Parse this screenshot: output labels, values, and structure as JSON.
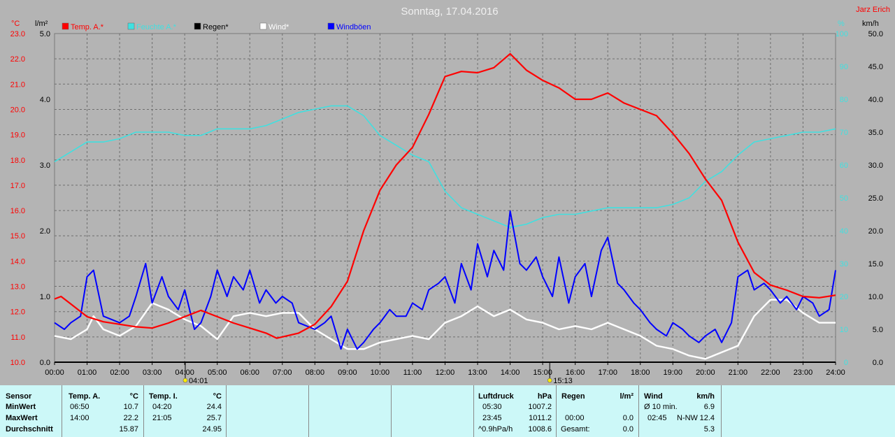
{
  "chart_data": {
    "type": "line",
    "title": "Sonntag, 17.04.2016",
    "credit": "Jarz Erich",
    "left_axis_unit": "°C",
    "left2_axis_unit": "l/m²",
    "right_axis_unit": "%",
    "right2_axis_unit": "km/h",
    "temp_ylim": [
      10,
      23
    ],
    "temp_ticks": [
      "10.0",
      "11.0",
      "12.0",
      "13.0",
      "14.0",
      "15.0",
      "16.0",
      "17.0",
      "18.0",
      "19.0",
      "20.0",
      "21.0",
      "22.0",
      "23.0"
    ],
    "rain_ylim": [
      0,
      5
    ],
    "rain_ticks": [
      "0.0",
      "1.0",
      "2.0",
      "3.0",
      "4.0",
      "5.0"
    ],
    "hum_ylim": [
      0,
      100
    ],
    "hum_ticks": [
      "0",
      "10",
      "20",
      "30",
      "40",
      "50",
      "60",
      "70",
      "80",
      "90",
      "100"
    ],
    "wind_ylim": [
      0,
      50
    ],
    "wind_ticks": [
      "0.0",
      "5.0",
      "10.0",
      "15.0",
      "20.0",
      "25.0",
      "30.0",
      "35.0",
      "40.0",
      "45.0",
      "50.0"
    ],
    "x_ticks": [
      "00:00",
      "01:00",
      "02:00",
      "03:00",
      "04:00",
      "05:00",
      "06:00",
      "07:00",
      "08:00",
      "09:00",
      "10:00",
      "11:00",
      "12:00",
      "13:00",
      "14:00",
      "15:00",
      "16:00",
      "17:00",
      "18:00",
      "19:00",
      "20:00",
      "21:00",
      "22:00",
      "23:00",
      "24:00"
    ],
    "sunrise": {
      "hour": 4.0167,
      "label": "04:01"
    },
    "sunset": {
      "hour": 15.2167,
      "label": "15:13"
    },
    "legend": [
      {
        "name": "Temp. A.*",
        "color": "#ff0000"
      },
      {
        "name": "Feuchte A.*",
        "color": "#40e0e0"
      },
      {
        "name": "Regen*",
        "color": "#000000"
      },
      {
        "name": "Wind*",
        "color": "#ffffff"
      },
      {
        "name": "Windböen",
        "color": "#0000ff"
      }
    ],
    "series": [
      {
        "name": "Temp. A.*",
        "unit": "°C",
        "color": "#ff0000",
        "x": [
          0,
          0.2,
          0.5,
          1,
          1.5,
          2,
          2.5,
          3,
          3.5,
          4,
          4.5,
          5,
          5.5,
          6,
          6.5,
          6.83,
          7.5,
          8,
          8.5,
          9,
          9.5,
          10,
          10.5,
          11,
          11.5,
          12,
          12.5,
          13,
          13.5,
          14,
          14.5,
          15,
          15.5,
          16,
          16.5,
          17,
          17.5,
          18,
          18.5,
          19,
          19.5,
          20,
          20.5,
          21,
          21.5,
          22,
          22.5,
          23,
          23.5,
          24
        ],
        "y": [
          12.5,
          12.6,
          12.3,
          11.8,
          11.6,
          11.5,
          11.4,
          11.35,
          11.55,
          11.8,
          12.05,
          11.8,
          11.55,
          11.35,
          11.15,
          10.95,
          11.15,
          11.5,
          12.2,
          13.2,
          15.2,
          16.8,
          17.8,
          18.5,
          19.8,
          21.3,
          21.5,
          21.45,
          21.65,
          22.2,
          21.55,
          21.15,
          20.85,
          20.4,
          20.4,
          20.65,
          20.25,
          20.0,
          19.75,
          19.05,
          18.25,
          17.25,
          16.4,
          14.75,
          13.55,
          13.05,
          12.85,
          12.6,
          12.55,
          12.65
        ]
      },
      {
        "name": "Feuchte A.*",
        "unit": "%",
        "color": "#40e0e0",
        "x": [
          0,
          0.5,
          1,
          1.5,
          2,
          2.5,
          3,
          3.5,
          4,
          4.5,
          5,
          5.5,
          6,
          6.5,
          7,
          7.5,
          8,
          8.5,
          9,
          9.5,
          10,
          10.5,
          11,
          11.5,
          12,
          12.5,
          13,
          13.5,
          14,
          14.5,
          15,
          15.5,
          16,
          16.5,
          17,
          17.5,
          18,
          18.5,
          19,
          19.5,
          20,
          20.5,
          21,
          21.5,
          22,
          22.5,
          23,
          23.5,
          24
        ],
        "y": [
          61,
          64,
          67,
          67,
          68,
          70,
          70,
          70,
          69,
          69,
          71,
          71,
          71,
          72,
          74,
          76,
          77,
          78,
          78,
          75,
          69,
          66,
          63,
          61,
          52,
          47,
          45,
          43,
          41,
          42,
          44,
          45,
          45,
          46,
          47,
          47,
          47,
          47,
          48,
          50,
          55,
          58,
          63,
          67,
          68,
          69,
          70,
          70,
          71
        ]
      },
      {
        "name": "Regen*",
        "unit": "l/m²",
        "color": "#000000",
        "x": [
          0,
          24
        ],
        "y": [
          0,
          0
        ]
      },
      {
        "name": "Wind*",
        "unit": "km/h",
        "color": "#ffffff",
        "x": [
          0,
          0.5,
          1,
          1.2,
          1.5,
          2,
          2.5,
          3,
          3.5,
          4,
          4.5,
          5,
          5.5,
          6,
          6.5,
          7,
          7.5,
          8,
          8.5,
          9,
          9.5,
          10,
          10.5,
          11,
          11.5,
          12,
          12.5,
          13,
          13.5,
          14,
          14.5,
          15,
          15.5,
          16,
          16.5,
          17,
          17.5,
          18,
          18.5,
          19,
          19.5,
          20,
          20.5,
          21,
          21.5,
          22,
          22.5,
          23,
          23.5,
          24
        ],
        "y": [
          4,
          3.5,
          5,
          7,
          5,
          4,
          5.5,
          9,
          8,
          6.5,
          5.5,
          3.5,
          7,
          7.5,
          7,
          7.5,
          7.5,
          5,
          3.5,
          2,
          2,
          3,
          3.5,
          4,
          3.5,
          6,
          7,
          8.5,
          7,
          8,
          6.5,
          6,
          5,
          5.5,
          5,
          6,
          5,
          4,
          2.5,
          2,
          1,
          0.5,
          1.5,
          2.5,
          7,
          9.5,
          9.5,
          7.5,
          6,
          6
        ]
      },
      {
        "name": "Windböen",
        "unit": "km/h",
        "color": "#0000ff",
        "x": [
          0,
          0.3,
          0.5,
          0.8,
          1,
          1.2,
          1.5,
          2,
          2.3,
          2.5,
          2.8,
          3,
          3.3,
          3.5,
          3.8,
          4,
          4.3,
          4.5,
          4.8,
          5,
          5.3,
          5.5,
          5.8,
          6,
          6.3,
          6.5,
          6.8,
          7,
          7.3,
          7.5,
          8,
          8.3,
          8.5,
          8.8,
          9,
          9.3,
          9.5,
          9.8,
          10,
          10.3,
          10.5,
          10.8,
          11,
          11.3,
          11.5,
          11.8,
          12,
          12.3,
          12.5,
          12.8,
          13,
          13.3,
          13.5,
          13.8,
          14,
          14.3,
          14.5,
          14.8,
          15,
          15.3,
          15.5,
          15.8,
          16,
          16.3,
          16.5,
          16.8,
          17,
          17.3,
          17.5,
          17.8,
          18,
          18.3,
          18.5,
          18.8,
          19,
          19.3,
          19.5,
          19.8,
          20,
          20.3,
          20.5,
          20.8,
          21,
          21.3,
          21.5,
          21.8,
          22,
          22.3,
          22.5,
          22.8,
          23,
          23.3,
          23.5,
          23.8,
          24
        ],
        "y": [
          6,
          5,
          6,
          7,
          13,
          14,
          7,
          6,
          7,
          10,
          15,
          9,
          13,
          10,
          8,
          11,
          5,
          6,
          10,
          14,
          10,
          13,
          11,
          14,
          9,
          11,
          9,
          10,
          9,
          6,
          5,
          6,
          7,
          2,
          5,
          2,
          3,
          5,
          6,
          8,
          7,
          7,
          9,
          8,
          11,
          12,
          13,
          9,
          15,
          11,
          18,
          13,
          17,
          14,
          23,
          15,
          14,
          16,
          13,
          10,
          16,
          9,
          13,
          15,
          10,
          17,
          19,
          12,
          11,
          9,
          8,
          6,
          5,
          4,
          6,
          5,
          4,
          3,
          4,
          5,
          3,
          6,
          13,
          14,
          11,
          12,
          11,
          9,
          10,
          8,
          10,
          9,
          7,
          8,
          14
        ]
      }
    ]
  },
  "summary": {
    "sensor": {
      "header": "Sensor",
      "rows": [
        "MinWert",
        "MaxWert",
        "Durchschnitt"
      ]
    },
    "temp_a": {
      "header": "Temp. A.",
      "unit": "°C",
      "min_time": "06:50",
      "min_val": "10.7",
      "max_time": "14:00",
      "max_val": "22.2",
      "avg_val": "15.87"
    },
    "temp_i": {
      "header": "Temp. I.",
      "unit": "°C",
      "min_time": "04:20",
      "min_val": "24.4",
      "max_time": "21:05",
      "max_val": "25.7",
      "avg_val": "24.95"
    },
    "luftdruck": {
      "header": "Luftdruck",
      "unit": "hPa",
      "min_time": "05:30",
      "min_val": "1007.2",
      "max_time": "23:45",
      "max_val": "1011.2",
      "trend_label": "^0.9hPa/h",
      "trend_val": "1008.6"
    },
    "regen": {
      "header": "Regen",
      "unit": "l/m²",
      "max_time": "00:00",
      "max_val": "0.0",
      "total_label": "Gesamt:",
      "total_val": "0.0"
    },
    "wind": {
      "header": "Wind",
      "unit": "km/h",
      "avg_label": "Ø 10 min.",
      "avg_val": "6.9",
      "max_time": "02:45",
      "max_dir": "N-NW",
      "max_val": "12.4",
      "day_avg_val": "5.3"
    }
  }
}
